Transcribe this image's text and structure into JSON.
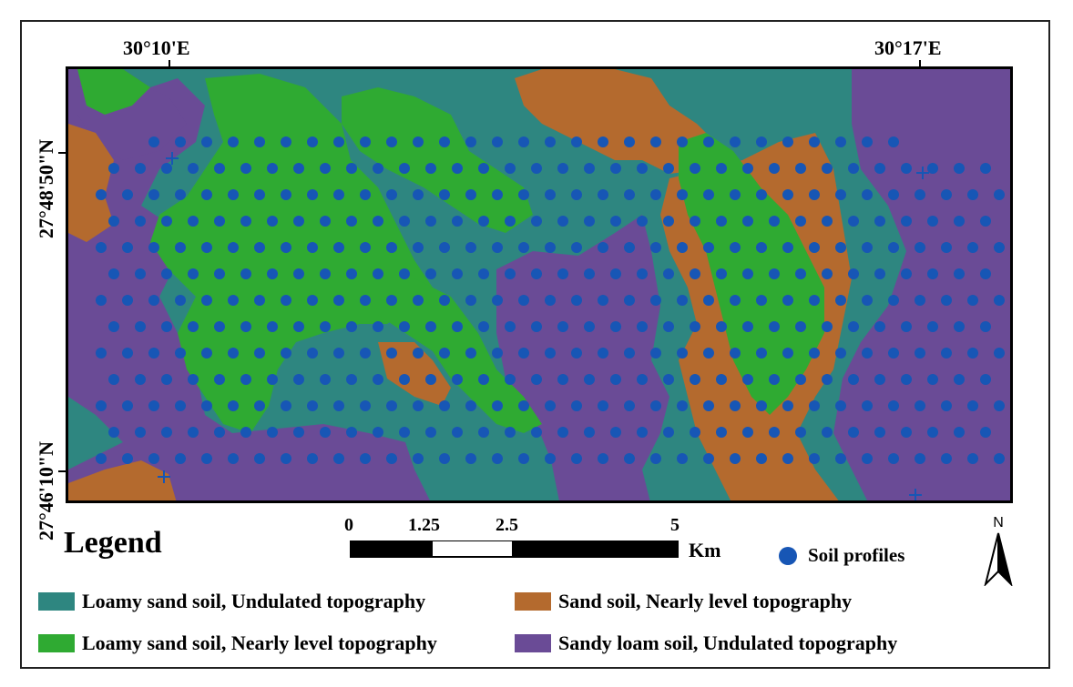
{
  "coords": {
    "top_left": "30°10'E",
    "top_right": "30°17'E",
    "left_top": "27°48'50\"N",
    "left_bottom": "27°46'10\"N"
  },
  "legend": {
    "title": "Legend",
    "items": [
      {
        "label": "Loamy sand soil, Undulated topography",
        "color": "#2e8680"
      },
      {
        "label": "Sand soil, Nearly level topography",
        "color": "#b46a2e"
      },
      {
        "label": "Loamy sand soil, Nearly level topography",
        "color": "#2faa32"
      },
      {
        "label": "Sandy loam soil, Undulated topography",
        "color": "#6a4b96"
      }
    ],
    "profile_label": "Soil profiles",
    "profile_color": "#1756b5"
  },
  "scale": {
    "ticks": [
      "0",
      "1.25",
      "2.5",
      "5"
    ],
    "unit": "Km"
  },
  "north_label": "N"
}
